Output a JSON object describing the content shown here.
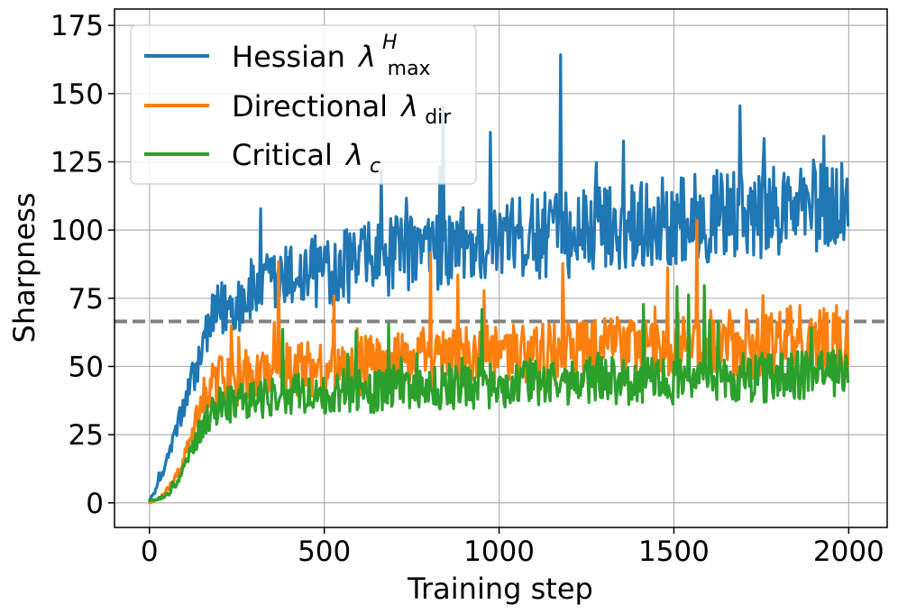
{
  "chart_data": {
    "type": "line",
    "title": "",
    "xlabel": "Training step",
    "ylabel": "Sharpness",
    "xlim": [
      -100,
      2110
    ],
    "ylim": [
      -9,
      181
    ],
    "xticks": [
      0,
      500,
      1000,
      1500,
      2000
    ],
    "yticks": [
      0,
      25,
      50,
      75,
      100,
      125,
      150,
      175
    ],
    "grid": true,
    "legend_position": "top-left",
    "reference_line": {
      "y": 66.5,
      "style": "dashed",
      "color": "#808080"
    },
    "colors": {
      "hessian": "#1f77b4",
      "directional": "#ff7f0e",
      "critical": "#2ca02c"
    },
    "x_step": 20,
    "series": [
      {
        "key": "hessian",
        "name": "Hessian",
        "symbol": "λ",
        "sup": "H",
        "sub": "max",
        "values": [
          1,
          5,
          12,
          20,
          28,
          36,
          44,
          52,
          60,
          66,
          70,
          72,
          73,
          75,
          76,
          78,
          78,
          80,
          80,
          82,
          82,
          84,
          83,
          85,
          84,
          86,
          86,
          87,
          87,
          88,
          88,
          89,
          88,
          90,
          89,
          91,
          90,
          92,
          91,
          92,
          92,
          93,
          92,
          94,
          93,
          95,
          94,
          95,
          95,
          96,
          95,
          97,
          96,
          97,
          97,
          98,
          97,
          99,
          98,
          99,
          98,
          100,
          99,
          101,
          100,
          101,
          101,
          102,
          101,
          103,
          102,
          103,
          102,
          104,
          103,
          104,
          103,
          105,
          104,
          105,
          104,
          106,
          105,
          106,
          105,
          107,
          106,
          107,
          106,
          108,
          107,
          108,
          107,
          109,
          108,
          109,
          108,
          110,
          109,
          110,
          108
        ]
      },
      {
        "key": "directional",
        "name": "Directional",
        "symbol": "λ",
        "sub": "dir",
        "values": [
          0,
          1,
          3,
          6,
          10,
          16,
          24,
          32,
          38,
          42,
          44,
          44,
          45,
          46,
          46,
          47,
          47,
          48,
          48,
          49,
          48,
          49,
          49,
          50,
          49,
          50,
          50,
          51,
          50,
          51,
          50,
          51,
          51,
          52,
          51,
          52,
          51,
          52,
          52,
          53,
          52,
          53,
          52,
          53,
          53,
          54,
          53,
          54,
          53,
          54,
          53,
          55,
          54,
          55,
          54,
          55,
          54,
          55,
          55,
          56,
          55,
          56,
          55,
          56,
          55,
          56,
          56,
          57,
          56,
          57,
          56,
          57,
          56,
          57,
          57,
          58,
          57,
          58,
          57,
          58,
          57,
          58,
          58,
          59,
          58,
          59,
          58,
          59,
          58,
          59,
          59,
          60,
          59,
          60,
          59,
          60,
          59,
          60,
          60,
          61,
          58
        ]
      },
      {
        "key": "critical",
        "name": "Critical",
        "symbol": "λ",
        "sub": "c",
        "values": [
          1,
          1,
          2,
          4,
          8,
          13,
          20,
          26,
          31,
          34,
          36,
          36,
          37,
          37,
          38,
          38,
          38,
          39,
          39,
          39,
          39,
          40,
          40,
          40,
          40,
          40,
          40,
          41,
          41,
          41,
          41,
          41,
          41,
          41,
          42,
          42,
          42,
          42,
          42,
          42,
          42,
          42,
          43,
          43,
          43,
          43,
          43,
          43,
          43,
          43,
          43,
          43,
          44,
          44,
          44,
          44,
          44,
          44,
          44,
          44,
          44,
          44,
          44,
          45,
          45,
          45,
          45,
          45,
          45,
          45,
          45,
          45,
          45,
          45,
          45,
          45,
          46,
          46,
          46,
          46,
          46,
          46,
          46,
          46,
          46,
          46,
          46,
          46,
          46,
          46,
          46,
          47,
          47,
          47,
          47,
          47,
          47,
          47,
          47,
          47,
          46
        ]
      }
    ]
  }
}
